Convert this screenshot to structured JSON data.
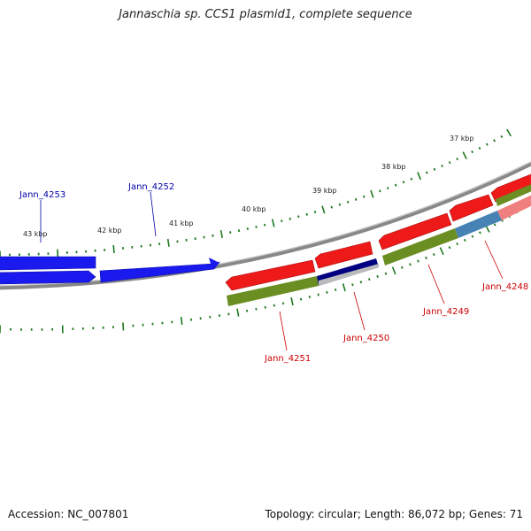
{
  "title": "Jannaschia sp. CCS1 plasmid1, complete sequence",
  "footer": {
    "accession_label": "Accession:",
    "accession": "NC_007801",
    "topology_label": "Topology:",
    "topology": "circular",
    "length_label": "Length:",
    "length": "86,072 bp",
    "genes_label": "Genes:",
    "genes": "71"
  },
  "colors": {
    "forward_gene": "#1a1aee",
    "reverse_gene": "#ee1a1a",
    "backbone": "#888888",
    "tick": "#1f7a1f",
    "cog_olive": "#6b8e23",
    "cog_navy": "#000080",
    "cog_steelblue": "#4682b4",
    "cog_pink": "#f08080",
    "forward_label": "#0000aa",
    "reverse_label": "#cc0000"
  },
  "scale_labels": [
    "43 kbp",
    "42 kbp",
    "41 kbp",
    "40 kbp",
    "39 kbp",
    "38 kbp",
    "37 kbp"
  ],
  "gene_labels": {
    "jann_4253": "Jann_4253",
    "jann_4252": "Jann_4252",
    "jann_4251": "Jann_4251",
    "jann_4250": "Jann_4250",
    "jann_4249": "Jann_4249",
    "jann_4248": "Jann_4248"
  }
}
